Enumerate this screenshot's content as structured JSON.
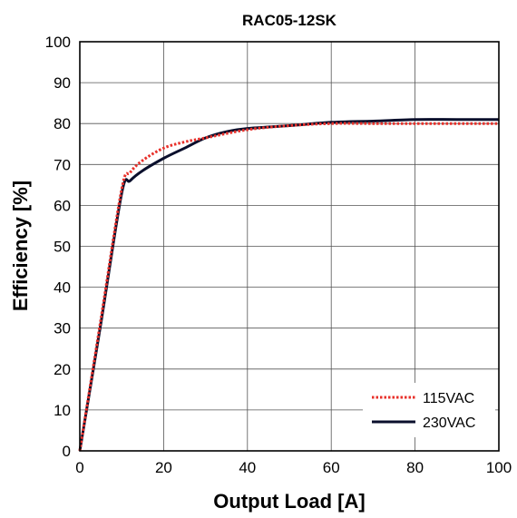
{
  "chart_data": {
    "type": "line",
    "title": "RAC05-12SK",
    "xlabel": "Output Load [A]",
    "ylabel": "Efficiency [%]",
    "xlim": [
      0,
      100
    ],
    "ylim": [
      0,
      100
    ],
    "xticks": [
      0,
      20,
      40,
      60,
      80,
      100
    ],
    "yticks": [
      0,
      10,
      20,
      30,
      40,
      50,
      60,
      70,
      80,
      90,
      100
    ],
    "grid": true,
    "legend_position": "bottom-right",
    "series": [
      {
        "name": "115VAC",
        "color": "#e8302a",
        "style": "dotted",
        "points": [
          [
            0,
            0
          ],
          [
            5,
            32
          ],
          [
            10,
            64
          ],
          [
            12,
            68
          ],
          [
            15,
            71
          ],
          [
            20,
            74
          ],
          [
            25,
            75.5
          ],
          [
            30,
            76.5
          ],
          [
            40,
            78.5
          ],
          [
            50,
            79.5
          ],
          [
            60,
            80
          ],
          [
            70,
            80
          ],
          [
            80,
            80
          ],
          [
            90,
            80
          ],
          [
            100,
            80
          ]
        ]
      },
      {
        "name": "230VAC",
        "color": "#0a0f2c",
        "style": "solid",
        "points": [
          [
            0,
            0
          ],
          [
            5,
            31
          ],
          [
            10,
            63
          ],
          [
            12,
            66
          ],
          [
            15,
            68.5
          ],
          [
            20,
            71.5
          ],
          [
            25,
            74
          ],
          [
            30,
            76.5
          ],
          [
            35,
            78
          ],
          [
            40,
            78.8
          ],
          [
            50,
            79.5
          ],
          [
            60,
            80.3
          ],
          [
            70,
            80.6
          ],
          [
            80,
            81
          ],
          [
            90,
            81
          ],
          [
            100,
            81
          ]
        ]
      }
    ]
  }
}
